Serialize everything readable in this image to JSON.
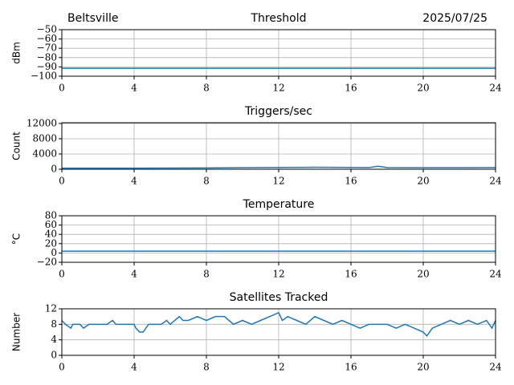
{
  "chart_data": [
    {
      "type": "line",
      "title": "Threshold",
      "location": "Beltsville",
      "date": "2025/07/25",
      "ylabel": "dBm",
      "xlim": [
        0,
        24
      ],
      "xticks": [
        0,
        4,
        8,
        12,
        16,
        20,
        24
      ],
      "ylim": [
        -100,
        -50
      ],
      "yticks": [
        {
          "value": -100,
          "label": "−100"
        },
        {
          "value": -90,
          "label": "−90"
        },
        {
          "value": -80,
          "label": "−80"
        },
        {
          "value": -70,
          "label": "−70"
        },
        {
          "value": -60,
          "label": "−60"
        },
        {
          "value": -50,
          "label": "−50"
        }
      ],
      "grid": true,
      "color": "#1f77b4",
      "x": [
        0,
        24
      ],
      "values": [
        -91.5,
        -91.5
      ]
    },
    {
      "type": "line",
      "title": "Triggers/sec",
      "ylabel": "Count",
      "xlim": [
        0,
        24
      ],
      "xticks": [
        0,
        4,
        8,
        12,
        16,
        20,
        24
      ],
      "ylim": [
        0,
        12200
      ],
      "yticks": [
        0,
        4000,
        8000,
        12000
      ],
      "grid": true,
      "color": "#1f77b4",
      "x": [
        0,
        2,
        4,
        6,
        8,
        10,
        12,
        14,
        16,
        17,
        17.5,
        18,
        20,
        22,
        24
      ],
      "values": [
        300,
        300,
        300,
        320,
        350,
        420,
        480,
        520,
        480,
        450,
        800,
        450,
        420,
        430,
        450
      ]
    },
    {
      "type": "line",
      "title": "Temperature",
      "ylabel": "°C",
      "xlim": [
        0,
        24
      ],
      "xticks": [
        0,
        4,
        8,
        12,
        16,
        20,
        24
      ],
      "ylim": [
        -20,
        80
      ],
      "yticks": [
        {
          "value": -20,
          "label": "−20"
        },
        0,
        20,
        40,
        60,
        80
      ],
      "grid": true,
      "color": "#1f77b4",
      "x": [
        0,
        24
      ],
      "values": [
        4,
        4
      ]
    },
    {
      "type": "line",
      "title": "Satellites Tracked",
      "ylabel": "Number",
      "xlim": [
        0,
        24
      ],
      "xticks": [
        0,
        4,
        8,
        12,
        16,
        20,
        24
      ],
      "ylim": [
        0,
        12
      ],
      "yticks": [
        0,
        4,
        8,
        12
      ],
      "grid": true,
      "color": "#1f77b4",
      "x": [
        0,
        0.2,
        0.5,
        0.6,
        1,
        1.2,
        1.5,
        2,
        2.5,
        2.8,
        3,
        3.5,
        4,
        4.1,
        4.3,
        4.5,
        4.8,
        5,
        5.5,
        5.8,
        6,
        6.5,
        6.7,
        7,
        7.5,
        8,
        8.5,
        9,
        9.5,
        10,
        10.5,
        11,
        11.5,
        12,
        12.2,
        12.5,
        13,
        13.5,
        14,
        14.5,
        15,
        15.5,
        16,
        16.5,
        17,
        18,
        18.5,
        19,
        19.5,
        20,
        20.2,
        20.5,
        21,
        21.5,
        22,
        22.5,
        23,
        23.5,
        23.8,
        24
      ],
      "values": [
        9,
        8,
        7,
        8,
        8,
        7,
        8,
        8,
        8,
        9,
        8,
        8,
        8,
        7,
        6,
        6,
        8,
        8,
        8,
        9,
        8,
        10,
        9,
        9,
        10,
        9,
        10,
        10,
        8,
        9,
        8,
        9,
        10,
        11,
        9,
        10,
        9,
        8,
        10,
        9,
        8,
        9,
        8,
        7,
        8,
        8,
        7,
        8,
        7,
        6,
        5,
        7,
        8,
        9,
        8,
        9,
        8,
        9,
        7,
        9
      ]
    }
  ]
}
